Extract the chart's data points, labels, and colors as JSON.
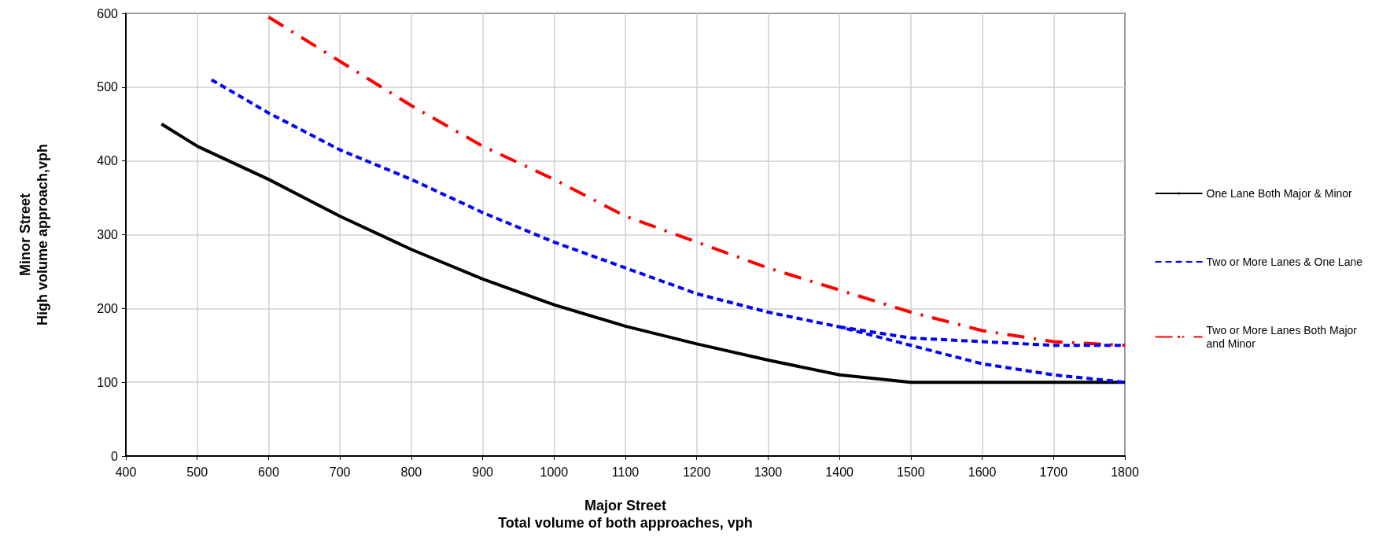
{
  "chart_data": {
    "type": "line",
    "xlabel": "Major Street\nTotal volume of both approaches, vph",
    "ylabel": "Minor Street\nHigh volume approach,vph",
    "xlim": [
      400,
      1800
    ],
    "xticks": [
      400,
      500,
      600,
      700,
      800,
      900,
      1000,
      1100,
      1200,
      1300,
      1400,
      1500,
      1600,
      1700,
      1800
    ],
    "ylim": [
      0,
      600
    ],
    "yticks": [
      0,
      100,
      200,
      300,
      400,
      500,
      600
    ],
    "grid": true,
    "legend": "right",
    "marker": "none",
    "series": [
      {
        "name": "One Lane Both Major & Minor",
        "color": "#000000",
        "line_style": "solid",
        "x": [
          450,
          500,
          600,
          700,
          800,
          900,
          1000,
          1100,
          1200,
          1300,
          1400,
          1500,
          1600,
          1700,
          1800
        ],
        "values": [
          450,
          420,
          375,
          325,
          280,
          240,
          205,
          176,
          152,
          130,
          110,
          100,
          100,
          100,
          100
        ]
      },
      {
        "name": "Two or More Lanes & One Lane",
        "color": "#0000ff",
        "line_style": "dashed",
        "x": [
          520,
          600,
          700,
          800,
          900,
          1000,
          1100,
          1200,
          1300,
          1400,
          1500,
          1600,
          1700,
          1800
        ],
        "values": [
          510,
          465,
          415,
          375,
          330,
          290,
          255,
          220,
          195,
          175,
          150,
          125,
          110,
          100
        ]
      },
      {
        "name": "Two or More Lanes Both Major\nand Minor",
        "color": "#ff0000",
        "line_style": "dashdot",
        "x": [
          600,
          700,
          800,
          900,
          1000,
          1100,
          1200,
          1300,
          1400,
          1500,
          1600,
          1700,
          1800
        ],
        "values": [
          595,
          535,
          475,
          420,
          375,
          325,
          290,
          255,
          225,
          195,
          170,
          155,
          150
        ]
      },
      {
        "color": "#0000ff",
        "line_style": "dashed",
        "x": [
          1400,
          1500,
          1600,
          1700,
          1800
        ],
        "values": [
          175,
          160,
          155,
          150,
          150
        ]
      }
    ]
  }
}
